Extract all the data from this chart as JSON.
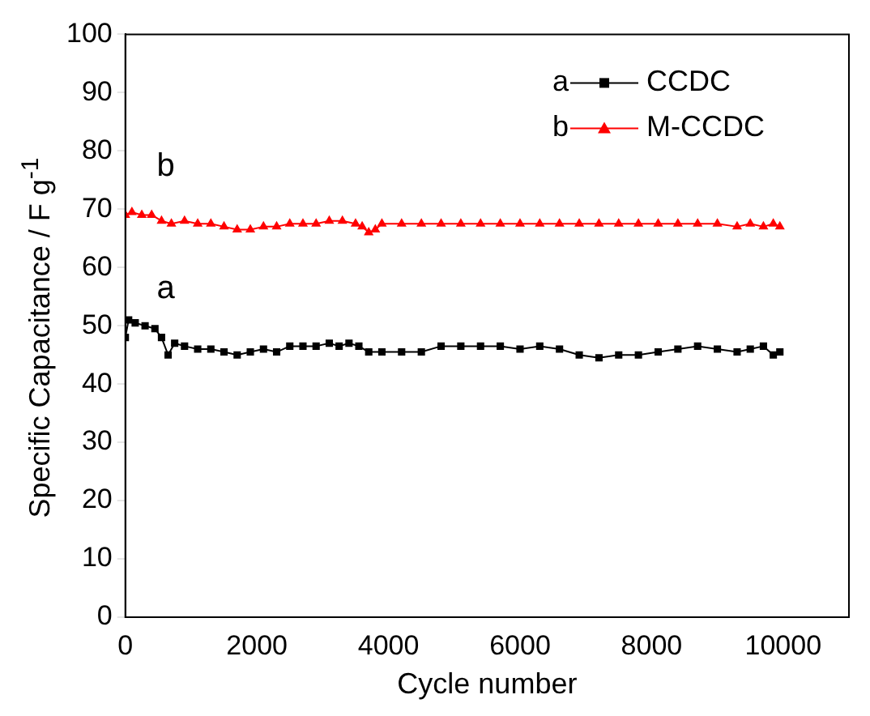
{
  "chart_data": {
    "type": "line",
    "xlabel": "Cycle number",
    "ylabel": "Specific Capacitance / F g$^{-1}$",
    "xlim": [
      0,
      11000
    ],
    "xticks": [
      0,
      2000,
      4000,
      6000,
      8000,
      10000
    ],
    "ylim": [
      0,
      100
    ],
    "yticks": [
      0,
      10,
      20,
      30,
      40,
      50,
      60,
      70,
      80,
      90,
      100
    ],
    "legend": "top right",
    "grid": false,
    "series": [
      {
        "name": "CCDC",
        "color": "#000000",
        "marker": "square",
        "x": [
          0,
          50,
          150,
          300,
          450,
          550,
          650,
          750,
          900,
          1100,
          1300,
          1500,
          1700,
          1900,
          2100,
          2300,
          2500,
          2700,
          2900,
          3100,
          3250,
          3400,
          3550,
          3700,
          3900,
          4200,
          4500,
          4800,
          5100,
          5400,
          5700,
          6000,
          6300,
          6600,
          6900,
          7200,
          7500,
          7800,
          8100,
          8400,
          8700,
          9000,
          9300,
          9500,
          9700,
          9850,
          9950
        ],
        "values": [
          48,
          51,
          50.5,
          50,
          49.5,
          48,
          45,
          47,
          46.5,
          46,
          46,
          45.5,
          45,
          45.5,
          46,
          45.5,
          46.5,
          46.5,
          46.5,
          47,
          46.5,
          47,
          46.5,
          45.5,
          45.5,
          45.5,
          45.5,
          46.5,
          46.5,
          46.5,
          46.5,
          46,
          46.5,
          46,
          45,
          44.5,
          45,
          45,
          45.5,
          46,
          46.5,
          46,
          45.5,
          46,
          46.5,
          45,
          45.5
        ]
      },
      {
        "name": "M-CCDC",
        "color": "#ff0000",
        "marker": "triangle",
        "x": [
          0,
          100,
          250,
          400,
          550,
          700,
          900,
          1100,
          1300,
          1500,
          1700,
          1900,
          2100,
          2300,
          2500,
          2700,
          2900,
          3100,
          3300,
          3500,
          3600,
          3700,
          3800,
          3900,
          4200,
          4500,
          4800,
          5100,
          5400,
          5700,
          6000,
          6300,
          6600,
          6900,
          7200,
          7500,
          7800,
          8100,
          8400,
          8700,
          9000,
          9300,
          9500,
          9700,
          9850,
          9950
        ],
        "values": [
          69,
          69.5,
          69,
          69,
          68,
          67.5,
          68,
          67.5,
          67.5,
          67,
          66.5,
          66.5,
          67,
          67,
          67.5,
          67.5,
          67.5,
          68,
          68,
          67.5,
          67,
          66,
          66.5,
          67.5,
          67.5,
          67.5,
          67.5,
          67.5,
          67.5,
          67.5,
          67.5,
          67.5,
          67.5,
          67.5,
          67.5,
          67.5,
          67.5,
          67.5,
          67.5,
          67.5,
          67.5,
          67,
          67.5,
          67,
          67.5,
          67
        ]
      }
    ],
    "annotations": [
      "a",
      "b"
    ]
  }
}
